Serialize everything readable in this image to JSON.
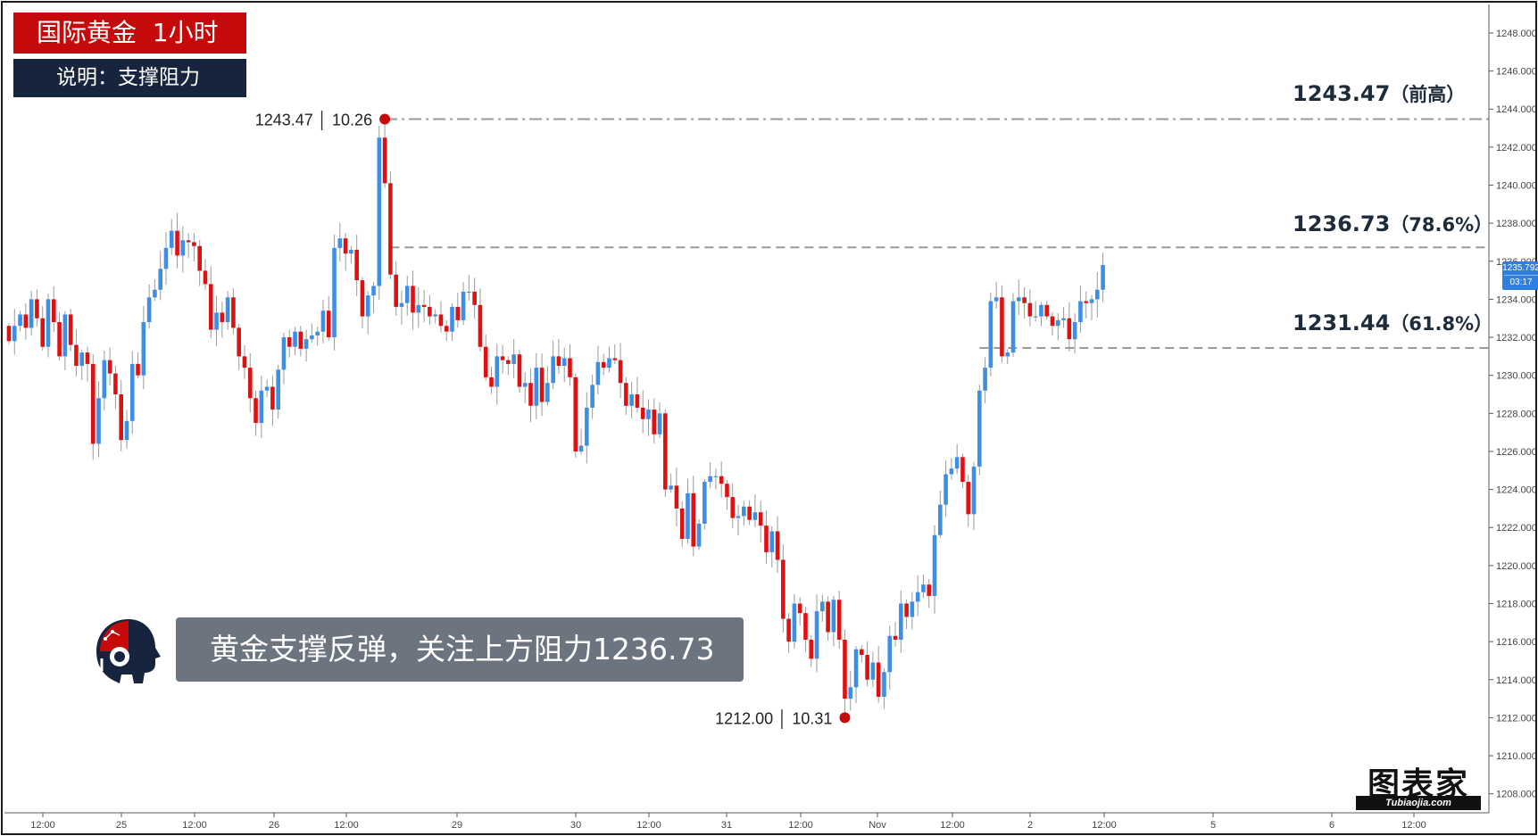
{
  "header": {
    "title": "国际黄金  1小时",
    "subtitle": "说明：支撑阻力"
  },
  "comment": "黄金支撑反弹，关注上方阻力1236.73",
  "logo": {
    "text": "图表家",
    "sub": "Tubiaojia.com"
  },
  "colors": {
    "up": "#3d8ee6",
    "down": "#dd1111",
    "title_bg": "#c40a0a",
    "subtitle_bg": "#16243d",
    "comment_bg": "#6c7480",
    "level_line": "#9a9a9a",
    "marker": "#c40a0a"
  },
  "current_price": {
    "value": "1235.792",
    "countdown": "03:17"
  },
  "levels": [
    {
      "value": 1243.47,
      "label": "1243.47",
      "note": "（前高）"
    },
    {
      "value": 1236.73,
      "label": "1236.73",
      "note": "（78.6%）"
    },
    {
      "value": 1231.44,
      "label": "1231.44",
      "note": "（61.8%）"
    }
  ],
  "markers": [
    {
      "type": "high",
      "price": 1243.47,
      "label": "1243.47 │ 10.26"
    },
    {
      "type": "low",
      "price": 1212.0,
      "label": "1212.00 │ 10.31"
    }
  ],
  "chart_data": {
    "type": "candlestick",
    "interval": "1小时",
    "ylim": [
      1207.0,
      1249.5
    ],
    "y_ticks": [
      "1208.000",
      "1210.000",
      "1212.000",
      "1214.000",
      "1216.000",
      "1218.000",
      "1220.000",
      "1222.000",
      "1224.000",
      "1226.000",
      "1228.000",
      "1230.000",
      "1232.000",
      "1234.000",
      "1236.000",
      "1238.000",
      "1240.000",
      "1242.000",
      "1244.000",
      "1246.000",
      "1248.000"
    ],
    "x_ticks": [
      "12:00",
      "25",
      "12:00",
      "26",
      "12:00",
      "29",
      "30",
      "12:00",
      "31",
      "12:00",
      "Nov",
      "12:00",
      "2",
      "12:00",
      "5",
      "6",
      "12:00"
    ],
    "close": [
      1231.8,
      1232.6,
      1233.2,
      1232.5,
      1234.0,
      1233.0,
      1231.5,
      1234.0,
      1232.8,
      1231.0,
      1233.2,
      1231.6,
      1230.5,
      1231.2,
      1230.6,
      1226.4,
      1228.8,
      1230.8,
      1230.1,
      1229.0,
      1226.6,
      1227.6,
      1230.6,
      1230.0,
      1232.8,
      1234.1,
      1234.5,
      1235.6,
      1236.7,
      1237.6,
      1236.3,
      1237.1,
      1237.0,
      1236.8,
      1235.5,
      1234.8,
      1232.4,
      1233.3,
      1232.8,
      1234.1,
      1232.5,
      1231.0,
      1230.4,
      1228.8,
      1227.5,
      1229.2,
      1229.4,
      1228.2,
      1230.3,
      1232.0,
      1231.5,
      1232.3,
      1231.4,
      1231.9,
      1232.1,
      1232.3,
      1233.4,
      1232.0,
      1236.7,
      1237.2,
      1236.4,
      1236.6,
      1235.0,
      1233.1,
      1234.2,
      1234.7,
      1242.5,
      1240.1,
      1235.3,
      1233.6,
      1233.8,
      1234.7,
      1233.3,
      1233.7,
      1233.6,
      1233.1,
      1233.2,
      1232.6,
      1232.3,
      1233.6,
      1232.9,
      1234.4,
      1234.4,
      1233.7,
      1231.5,
      1229.9,
      1229.4,
      1231.0,
      1230.8,
      1230.6,
      1231.1,
      1229.4,
      1229.6,
      1228.4,
      1230.4,
      1228.6,
      1229.6,
      1231.0,
      1230.5,
      1230.9,
      1229.9,
      1226.0,
      1226.3,
      1228.3,
      1229.5,
      1230.7,
      1230.4,
      1230.9,
      1230.8,
      1229.6,
      1228.4,
      1229.0,
      1228.3,
      1227.7,
      1228.2,
      1226.9,
      1228.0,
      1224.0,
      1224.2,
      1223.0,
      1221.4,
      1223.8,
      1221.0,
      1222.2,
      1224.4,
      1224.7,
      1224.7,
      1224.3,
      1223.6,
      1222.5,
      1222.6,
      1223.1,
      1222.4,
      1222.8,
      1222.1,
      1220.7,
      1221.8,
      1220.3,
      1217.2,
      1216.0,
      1218.0,
      1217.5,
      1216.1,
      1215.1,
      1217.6,
      1218.1,
      1216.5,
      1218.2,
      1216.1,
      1213.0,
      1213.6,
      1215.6,
      1215.3,
      1214.0,
      1214.9,
      1213.1,
      1214.4,
      1216.3,
      1216.1,
      1218.0,
      1217.3,
      1218.1,
      1218.6,
      1219.0,
      1218.4,
      1221.6,
      1223.2,
      1224.8,
      1225.1,
      1225.7,
      1224.4,
      1222.7,
      1225.2,
      1229.2,
      1230.4,
      1233.9,
      1234.1,
      1231.0,
      1231.2,
      1233.9,
      1234.1,
      1233.8,
      1233.1,
      1233.1,
      1233.7,
      1233.1,
      1232.6,
      1232.9,
      1233.0,
      1231.9,
      1232.8,
      1233.9,
      1233.8,
      1234.0,
      1234.5,
      1235.8
    ]
  }
}
